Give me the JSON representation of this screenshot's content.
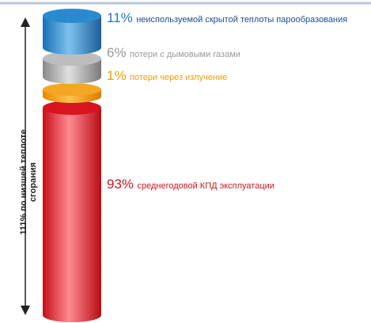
{
  "total_label": [
    "111% по низшей теплоте",
    "сгорания"
  ],
  "segments": [
    {
      "percent": "11%",
      "label": "неиспользуемой скрытой теплоты парообразования"
    },
    {
      "percent": "6%",
      "label": "потери с дымовыми газами"
    },
    {
      "percent": "1%",
      "label": "потери через излучение"
    },
    {
      "percent": "93%",
      "label": "среднегодовой КПД эксплуатации"
    }
  ]
}
